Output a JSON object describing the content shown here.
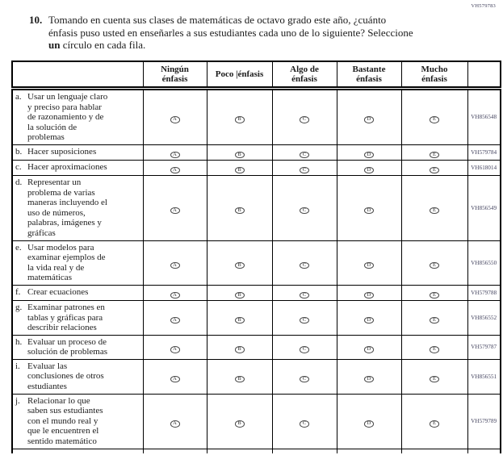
{
  "page_code": "VH579783",
  "question": {
    "number": "10.",
    "line1": "Tomando en cuenta sus clases de matemáticas de octavo grado este año, ¿cuánto",
    "line2": "énfasis puso usted en enseñarles a sus estudiantes cada uno de lo siguiente? Seleccione",
    "line3_bold": "un",
    "line3_rest": " círculo en cada fila."
  },
  "table": {
    "item_header": "",
    "headers": [
      "Ningún\nénfasis",
      "Poco |énfasis",
      "Algo de\nénfasis",
      "Bastante\nénfasis",
      "Mucho\nénfasis"
    ],
    "bubble_letters": [
      "A",
      "B",
      "C",
      "D",
      "E"
    ],
    "rows": [
      {
        "letter": "a.",
        "text": "Usar un lenguaje claro\ny preciso para hablar\nde razonamiento y de\nla solución de\nproblemas",
        "code": "VH856548"
      },
      {
        "letter": "b.",
        "text": "Hacer suposiciones",
        "code": "VH579784"
      },
      {
        "letter": "c.",
        "text": "Hacer aproximaciones",
        "code": "VH618014"
      },
      {
        "letter": "d.",
        "text": "Representar un\nproblema de varias\nmaneras incluyendo el\nuso de números,\npalabras, imágenes y\ngráficas",
        "code": "VH856549"
      },
      {
        "letter": "e.",
        "text": "Usar modelos para\nexaminar ejemplos de\nla vida real y de\nmatemáticas",
        "code": "VH856550"
      },
      {
        "letter": "f.",
        "text": "Crear ecuaciones",
        "code": "VH579788"
      },
      {
        "letter": "g.",
        "text": "Examinar patrones en\ntablas y gráficas para\ndescribir relaciones",
        "code": "VH856552"
      },
      {
        "letter": "h.",
        "text": "Evaluar un proceso de\nsolución de problemas",
        "code": "VH579787"
      },
      {
        "letter": "i.",
        "text": "Evaluar las\nconclusiones de otros\nestudiantes",
        "code": "VH856551"
      },
      {
        "letter": "j.",
        "text": "Relacionar lo que\nsaben sus estudiantes\ncon el mundo real y\nque le encuentren el\nsentido matemático",
        "code": "VH579789"
      }
    ]
  },
  "colors": {
    "border": "#000000",
    "text": "#1c1c1c",
    "code_text": "#3e3e5a",
    "bubble_border": "#4a4a4a"
  }
}
